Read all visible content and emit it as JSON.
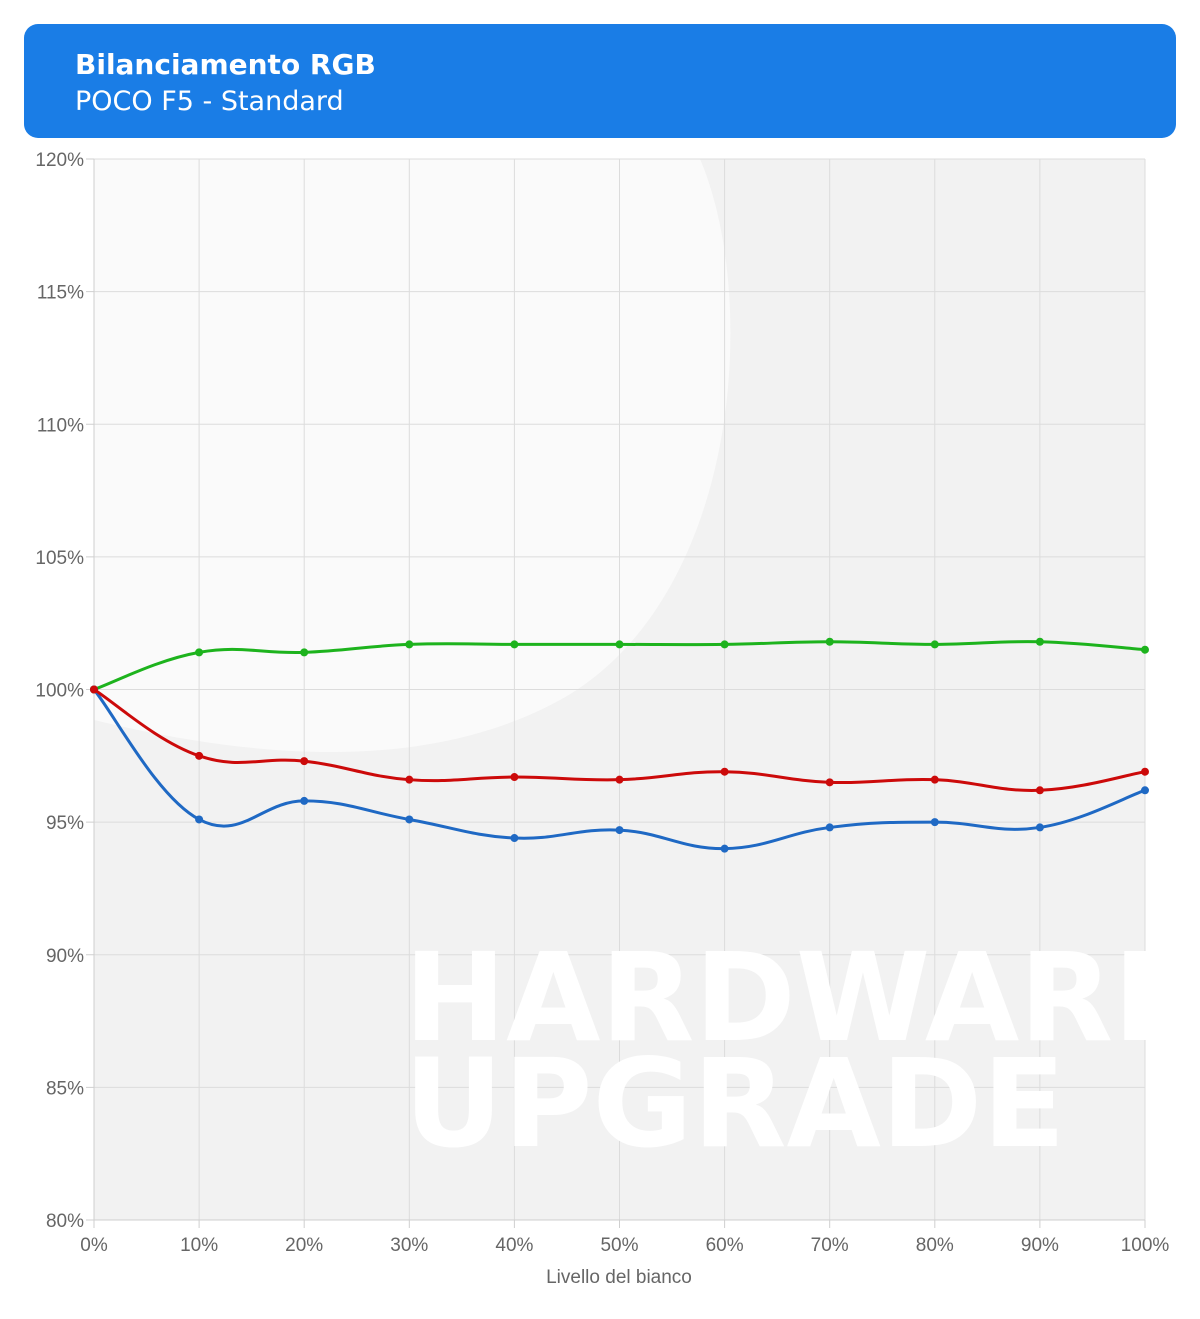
{
  "header": {
    "title": "Bilanciamento RGB",
    "subtitle": "POCO F5 - Standard"
  },
  "watermark": {
    "line1": "HARDWARE",
    "line2": "UPGRADE"
  },
  "colors": {
    "header_bg": "#1a7de6",
    "green": "#1db31d",
    "red": "#cc0a0a",
    "blue": "#1f69c4",
    "grid": "#dcdcdc",
    "plot_bg": "#f2f2f2"
  },
  "chart_data": {
    "type": "line",
    "title": "Bilanciamento RGB",
    "subtitle": "POCO F5 - Standard",
    "xlabel": "Livello del bianco",
    "ylabel": "",
    "x": [
      "0%",
      "10%",
      "20%",
      "30%",
      "40%",
      "50%",
      "60%",
      "70%",
      "80%",
      "90%",
      "100%"
    ],
    "x_values": [
      0,
      10,
      20,
      30,
      40,
      50,
      60,
      70,
      80,
      90,
      100
    ],
    "ylim": [
      80,
      120
    ],
    "yticks": [
      80,
      85,
      90,
      95,
      100,
      105,
      110,
      115,
      120
    ],
    "ytick_labels": [
      "80%",
      "85%",
      "90%",
      "95%",
      "100%",
      "105%",
      "110%",
      "115%",
      "120%"
    ],
    "grid": true,
    "legend": "none",
    "series": [
      {
        "color": "#1db31d",
        "values": [
          100,
          101.4,
          101.4,
          101.7,
          101.7,
          101.7,
          101.7,
          101.8,
          101.7,
          101.8,
          101.5
        ]
      },
      {
        "color": "#cc0a0a",
        "values": [
          100,
          97.5,
          97.3,
          96.6,
          96.7,
          96.6,
          96.9,
          96.5,
          96.6,
          96.2,
          96.9
        ]
      },
      {
        "color": "#1f69c4",
        "values": [
          100,
          95.1,
          95.8,
          95.1,
          94.4,
          94.7,
          94.0,
          94.8,
          95.0,
          94.8,
          96.2
        ]
      }
    ]
  }
}
